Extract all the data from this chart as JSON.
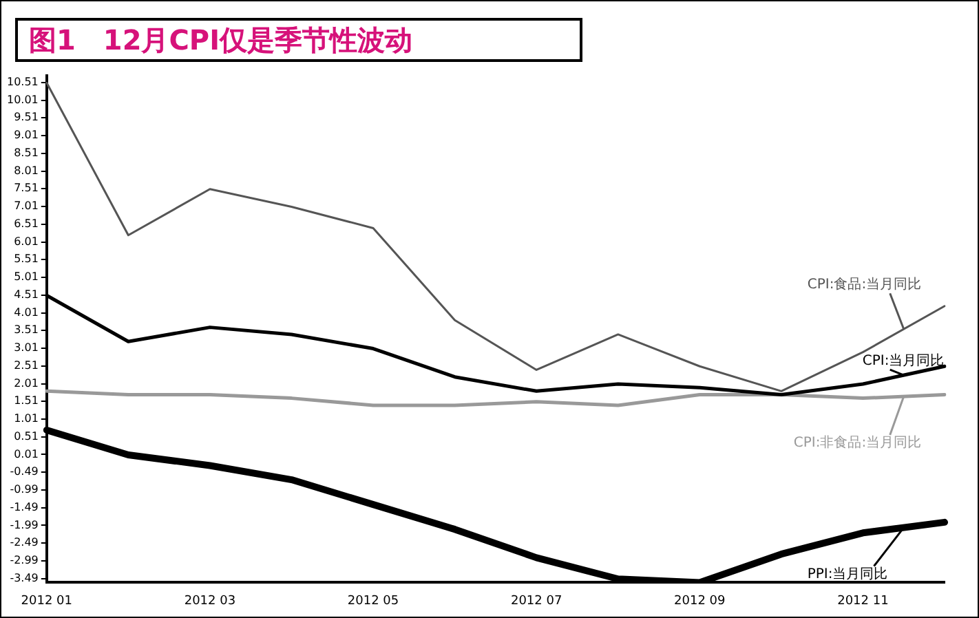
{
  "chart_data": {
    "type": "line",
    "title": "图1　12月CPI仅是季节性波动",
    "categories": [
      "2012 01",
      null,
      "2012 03",
      null,
      "2012 05",
      null,
      "2012 07",
      null,
      "2012 09",
      null,
      "2012 11",
      null
    ],
    "series": [
      {
        "name": "CPI:食品:当月同比",
        "color": "#555555",
        "values": [
          10.5,
          6.2,
          7.5,
          7.0,
          6.4,
          3.8,
          2.4,
          3.4,
          2.5,
          1.8,
          2.9,
          4.2
        ]
      },
      {
        "name": "CPI:当月同比",
        "color": "#000000",
        "values": [
          4.5,
          3.2,
          3.6,
          3.4,
          3.0,
          2.2,
          1.8,
          2.0,
          1.9,
          1.7,
          2.0,
          2.5
        ]
      },
      {
        "name": "CPI:非食品:当月同比",
        "color": "#999999",
        "values": [
          1.8,
          1.7,
          1.7,
          1.6,
          1.4,
          1.4,
          1.5,
          1.4,
          1.7,
          1.7,
          1.6,
          1.7
        ]
      },
      {
        "name": "PPI:当月同比",
        "color": "#000000",
        "values": [
          0.7,
          0.0,
          -0.3,
          -0.7,
          -1.4,
          -2.1,
          -2.9,
          -3.5,
          -3.6,
          -2.8,
          -2.2,
          -1.9
        ]
      }
    ],
    "ylim": [
      -3.6,
      10.7
    ],
    "yticks": [
      10.51,
      10.01,
      9.51,
      9.01,
      8.51,
      8.01,
      7.51,
      7.01,
      6.51,
      6.01,
      5.51,
      5.01,
      4.51,
      4.01,
      3.51,
      3.01,
      2.51,
      2.01,
      1.51,
      1.01,
      0.51,
      0.01,
      -0.49,
      -0.99,
      -1.49,
      -1.99,
      -2.49,
      -2.99,
      -3.49
    ],
    "grid": false,
    "legend": false,
    "marker": "none",
    "line_style": "solid"
  }
}
